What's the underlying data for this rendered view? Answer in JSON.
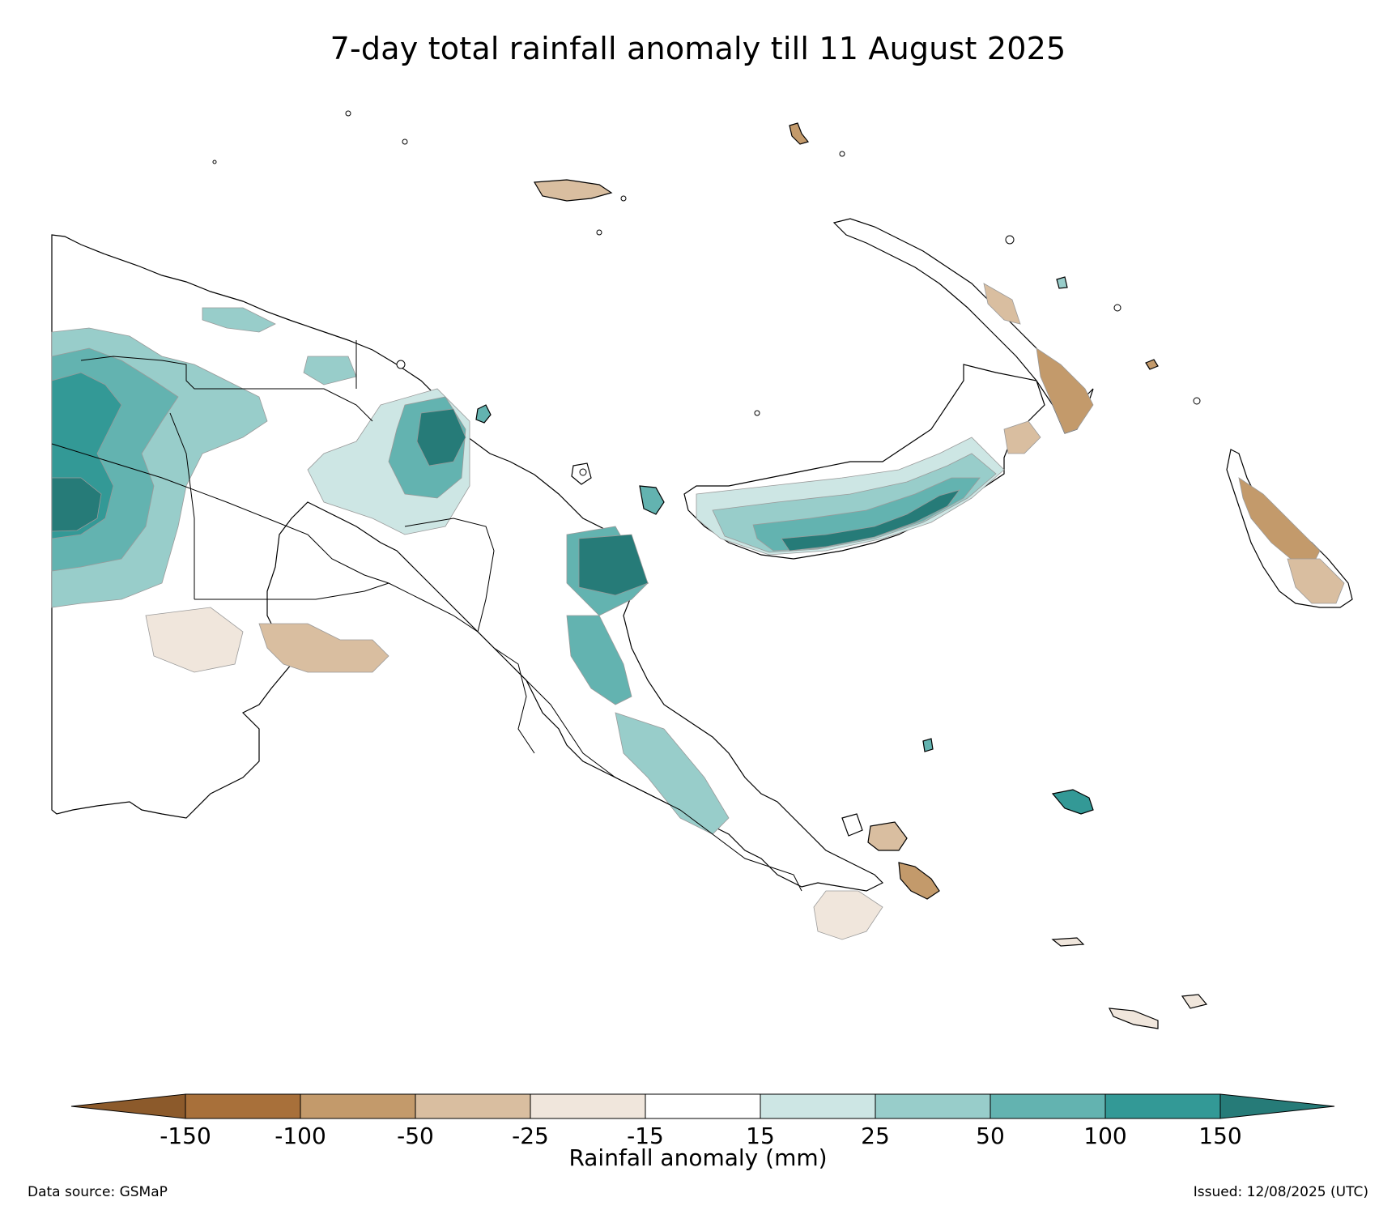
{
  "title": "7-day total rainfall anomaly till 11 August 2025",
  "colorbar": {
    "label": "Rainfall anomaly (mm)",
    "ticks": [
      "-150",
      "-100",
      "-50",
      "-25",
      "-15",
      "15",
      "25",
      "50",
      "100",
      "150"
    ],
    "bins": [
      {
        "from": null,
        "to": -150,
        "color": "#8c5a2b"
      },
      {
        "from": -150,
        "to": -100,
        "color": "#a8703a"
      },
      {
        "from": -100,
        "to": -50,
        "color": "#c39a6b"
      },
      {
        "from": -50,
        "to": -25,
        "color": "#d9bea0"
      },
      {
        "from": -25,
        "to": -15,
        "color": "#f0e6dc"
      },
      {
        "from": -15,
        "to": 15,
        "color": "#ffffff"
      },
      {
        "from": 15,
        "to": 25,
        "color": "#cde6e4"
      },
      {
        "from": 25,
        "to": 50,
        "color": "#98cdca"
      },
      {
        "from": 50,
        "to": 100,
        "color": "#63b3b0"
      },
      {
        "from": 100,
        "to": 150,
        "color": "#339996"
      },
      {
        "from": 150,
        "to": null,
        "color": "#267b78"
      }
    ]
  },
  "footer": {
    "source": "Data source: GSMaP",
    "issued": "Issued: 12/08/2025 (UTC)"
  },
  "colors": {
    "land_outline": "#000000",
    "contour_line": "#9a9a9a"
  }
}
